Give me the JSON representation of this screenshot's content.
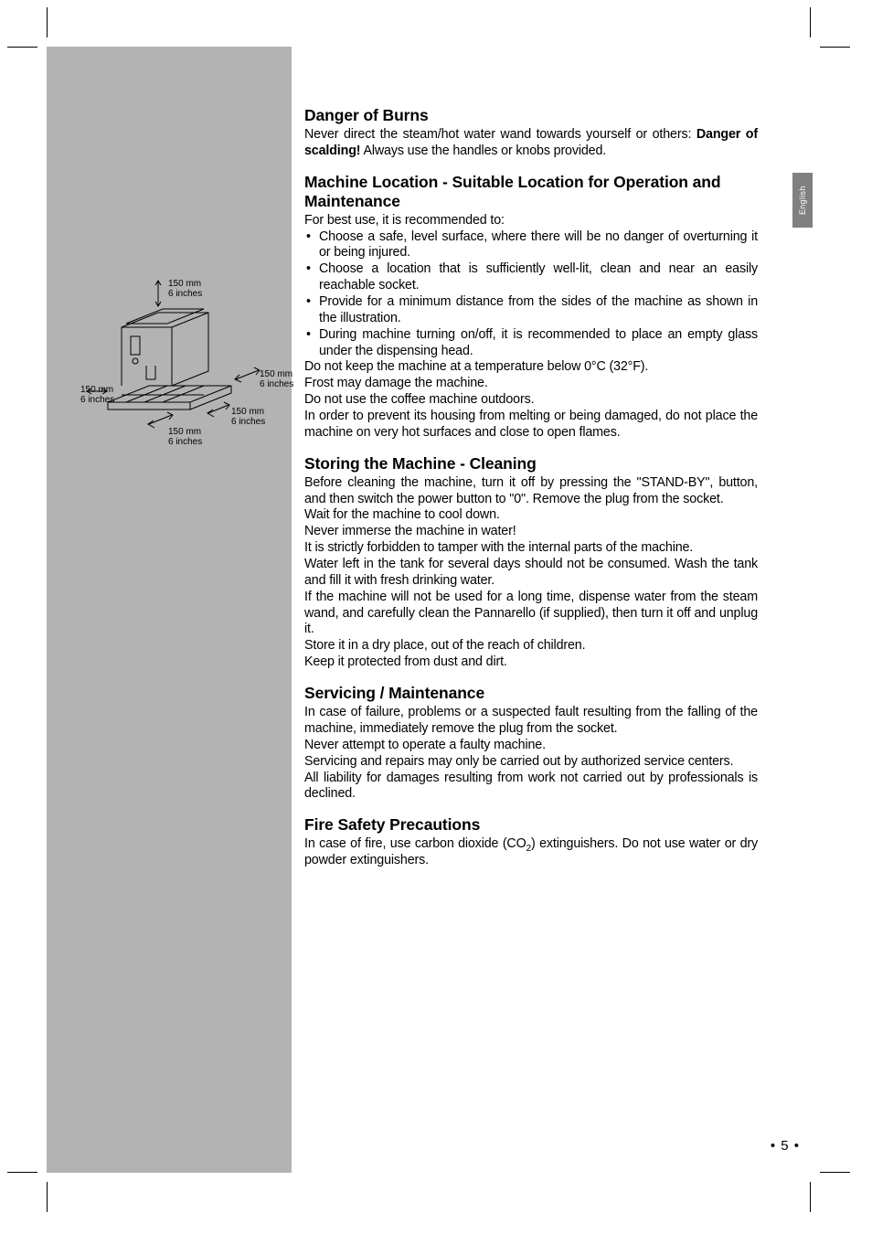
{
  "page_number": "• 5 •",
  "lang_tab": "English",
  "diagram": {
    "clearance_label": "150 mm\n6 inches"
  },
  "sections": {
    "danger_burns": {
      "title": "Danger of Burns",
      "p1_a": "Never direct the steam/hot water wand towards yourself or others: ",
      "p1_bold": "Danger of scalding!",
      "p1_b": " Always use the handles or knobs provided."
    },
    "location": {
      "title": "Machine Location - Suitable Location for Operation and Maintenance",
      "intro": "For best use, it is recommended to:",
      "bullets": [
        "Choose a safe, level surface, where there will be no danger of overturning it or being injured.",
        "Choose a location that is sufficiently well-lit, clean and near an easily reachable socket.",
        "Provide for a minimum distance from the sides of the machine as shown in the illustration.",
        "During machine turning on/off, it is recommended to place an empty glass under the dispensing head."
      ],
      "p1": "Do not keep the machine at a temperature below 0°C (32°F).",
      "p2": "Frost may damage the machine.",
      "p3": "Do not use the coffee machine outdoors.",
      "p4": "In order to prevent its housing from melting or being damaged, do not place the machine on very hot surfaces and close to open flames."
    },
    "storing": {
      "title": "Storing the Machine - Cleaning",
      "p1": "Before cleaning the machine, turn it off by pressing the \"STAND-BY\", button, and then switch the power button to \"0\". Remove the plug from the socket.",
      "p2": "Wait for the machine to cool down.",
      "p3": "Never immerse the machine in water!",
      "p4": "It is strictly forbidden to tamper with the internal parts of the machine.",
      "p5": "Water left in the tank for several days should not be consumed. Wash the tank and fill it with fresh drinking water.",
      "p6": "If the machine will not be used for a long time, dispense water from the steam wand, and carefully clean the Pannarello (if supplied), then turn it off and unplug it.",
      "p7": "Store it in a dry place, out of the reach of children.",
      "p8": "Keep it protected from dust and dirt."
    },
    "service": {
      "title": "Servicing / Maintenance",
      "p1": "In case of failure, problems or a suspected fault resulting from the falling of the machine, immediately remove the plug from the socket.",
      "p2": "Never attempt to operate a faulty machine.",
      "p3": "Servicing and repairs may only be carried out by authorized service centers.",
      "p4": "All liability for damages resulting from work not carried out by professionals is declined."
    },
    "fire": {
      "title": "Fire Safety Precautions",
      "p1_a": "In case of fire, use carbon dioxide (CO",
      "p1_sub": "2",
      "p1_b": ") extinguishers. Do not use water or dry powder extinguishers."
    }
  }
}
